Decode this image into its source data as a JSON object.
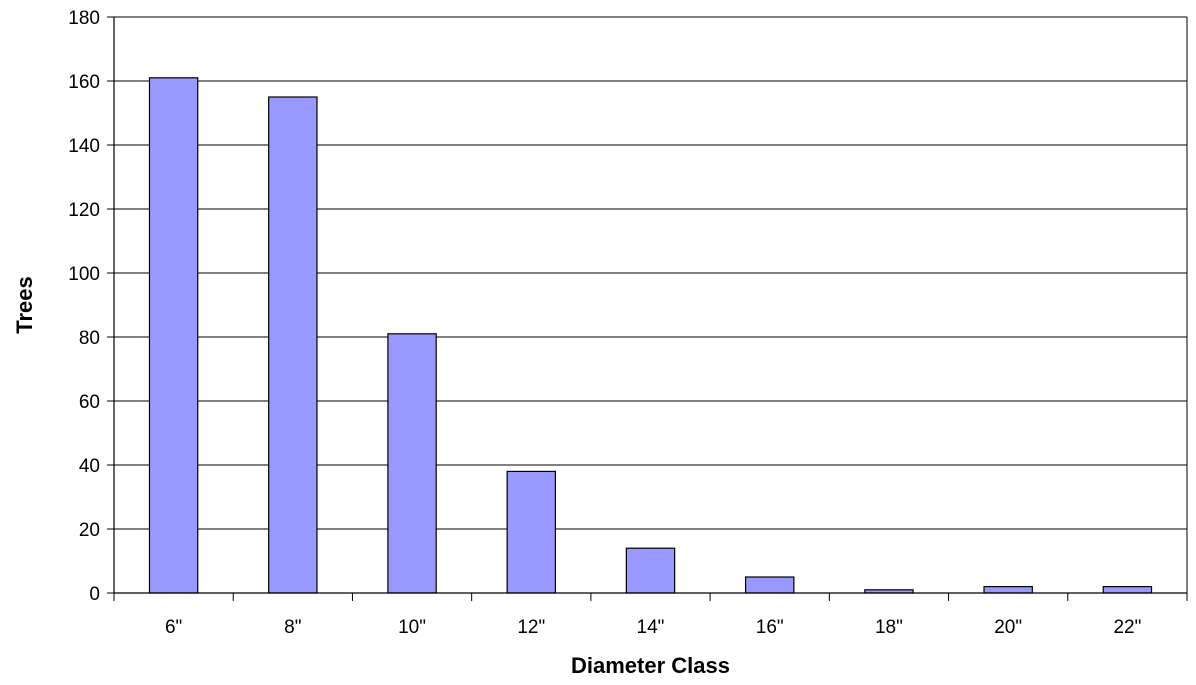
{
  "chart_data": {
    "type": "bar",
    "title": "",
    "xlabel": "Diameter Class",
    "ylabel": "Trees",
    "categories": [
      "6\"",
      "8\"",
      "10\"",
      "12\"",
      "14\"",
      "16\"",
      "18\"",
      "20\"",
      "22\""
    ],
    "series": [
      {
        "values": [
          161,
          155,
          81,
          38,
          14,
          5,
          1,
          2,
          2
        ]
      }
    ],
    "ylim": [
      0,
      180
    ],
    "yticks": [
      0,
      20,
      40,
      60,
      80,
      100,
      120,
      140,
      160,
      180
    ],
    "grid": true,
    "legend": "none",
    "bar_color": "#9999ff",
    "bar_edge_color": "#000000"
  }
}
